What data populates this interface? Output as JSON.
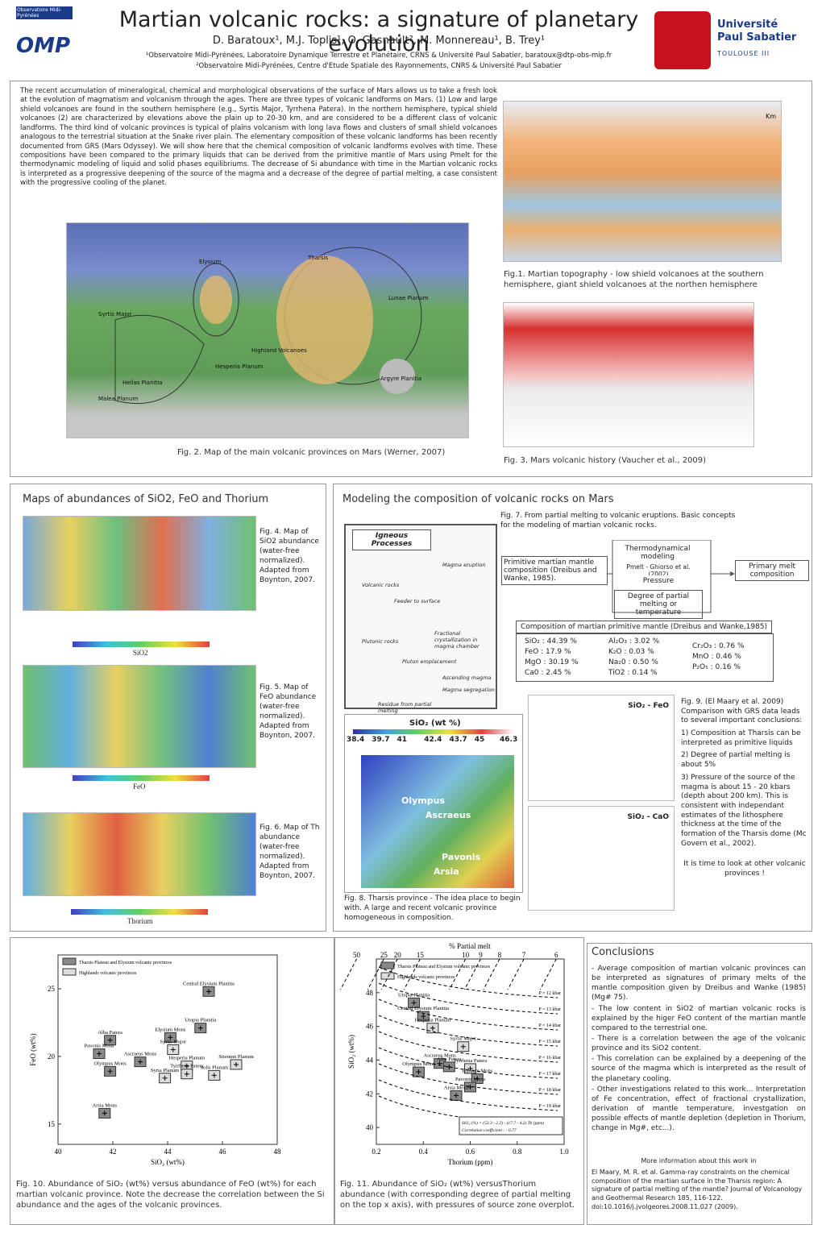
{
  "header": {
    "title": "Martian volcanic rocks: a signature of planetary evolution",
    "authors": "D. Baratoux¹, M.J. Toplis¹, O. Gasnault², M. Monnereau¹, B. Trey¹",
    "affiliation_1": "¹Observatoire Midi-Pyrénées, Laboratoire Dynamique Terrestre et Planétaire, CRNS & Université Paul Sabatier, baratoux@dtp-obs-mip.fr",
    "affiliation_2": "²Observatoire Midi-Pyrénées, Centre d'Etude Spatiale des Rayonnements, CNRS & Université Paul Sabatier",
    "logo_left_top": "Observatoire Midi-Pyrénées",
    "logo_left": "OMP",
    "logo_right_1": "Université",
    "logo_right_2": "Paul Sabatier",
    "logo_right_3": "TOULOUSE III"
  },
  "intro": "The recent accumulation of mineralogical, chemical and morphological observations of the surface of Mars allows us to take a fresh look at the evolution of magmatism and volcanism through the ages. There are three types of volcanic landforms on Mars. (1) Low and large shield volcanoes are found in the southern hemisphere (e.g., Syrtis Major, Tyrrhena Patera). In the northern hemisphere, typical shield volcanoes (2) are characterized by elevations above the plain up to 20-30 km, and are considered to be a different class of volcanic landforms. The third kind of volcanic provinces is typical of plains volcanism with long lava flows and clusters of small shield volcanoes analogous to the terrestrial situation at the Snake river plain. The elementary composition of these volcanic landforms has been recently documented from GRS (Mars Odyssey). We will show here that the chemical composition of volcanic landforms evolves with time. These compositions have been compared to the primary liquids that can be derived from the primitive mantle of Mars using Pmelt for the thermodynamic modeling of liquid and solid phases equilibriums. The decrease of Si abundance with time in the Martian volcanic rocks is interpreted as a progressive deepening of the source of the magma and a decrease of the degree of partial melting, a case consistent with the progressive cooling of the planet.",
  "fig1": {
    "caption": "Fig.1. Martian topography - low shield volcanoes at the southern hemisphere, giant shield volcanoes at the northen hemisphere",
    "unit": "Km"
  },
  "fig2": {
    "caption": "Fig. 2. Map of the main volcanic provinces on Mars (Werner, 2007)",
    "labels": [
      "Elysium",
      "Tharsis",
      "Syrtis Major",
      "Hesperia Planum",
      "Highland Volcanoes",
      "Malea Planum",
      "Argyre Planitia",
      "Hellas Planitia",
      "Lunae Planum"
    ]
  },
  "fig3": {
    "caption": "Fig. 3. Mars volcanic history (Vaucher et al., 2009)"
  },
  "maps": {
    "heading": "Maps of abundances of SiO2, FeO and Thorium",
    "fig4": "Fig. 4. Map of SiO2 abundance (water-free normalized). Adapted from Boynton, 2007.",
    "fig4_bar": "SiO2",
    "fig5": "Fig. 5. Map of FeO abundance (water-free normalized). Adapted from Boynton, 2007.",
    "fig5_bar": "FeO",
    "fig6": "Fig. 6. Map of Th abundance (water-free normalized). Adapted from Boynton, 2007.",
    "fig6_bar": "Thorium"
  },
  "modeling": {
    "heading": "Modeling the composition of volcanic rocks on Mars",
    "fig7_caption": "Fig. 7. From partial melting to volcanic eruptions. Basic concepts for the modeling of martian volcanic rocks.",
    "igneous": {
      "title": "Igneous Processes",
      "labels": [
        "Magma eruption",
        "Volcanic rocks",
        "Feeder to surface",
        "Fractional crystallization in magma chamber",
        "Plutonic rocks",
        "Pluton emplacement",
        "Ascending magma",
        "Magma segregation",
        "Residue from partial melting"
      ]
    },
    "flow": {
      "thermo": "Thermodynamical modeling",
      "pmelt": "Pmelt - Ghiorso et al. (2002)",
      "mantle": "Primitive martian mantle composition (Dreibus and Wanke, 1985).",
      "pressure": "Pressure",
      "degree": "Degree of partial melting or temperature",
      "primary": "Primary melt composition"
    },
    "composition_title": "Composition of martian primitive mantle (Dreibus and Wanke,1985)",
    "composition": [
      [
        "SiO₂ : 44.39 %",
        "FeO : 17.9 %",
        "MgO : 30.19 %",
        "Ca0 : 2.45 %"
      ],
      [
        "Al₂O₃ : 3.02 %",
        "K₂O : 0.03 %",
        "Na₂0 : 0.50 %",
        "TiO2 : 0.14 %"
      ],
      [
        "Cr₂O₃ : 0.76 %",
        "MnO : 0.46 %",
        "P₂O₅ : 0.16 %"
      ]
    ],
    "fig8": {
      "title": "SiO₂ (wt %)",
      "ticks": [
        38.4,
        39.7,
        41.0,
        42.4,
        43.7,
        45.0,
        46.3
      ],
      "volcanoes": [
        "Olympus",
        "Ascraeus",
        "Pavonis",
        "Arsia"
      ],
      "caption": "Fig. 8. Tharsis province - The idea place to begin with. A large and recent volcanic province homogeneous in composition."
    },
    "fig9": {
      "panels": [
        "SiO₂ - FeO",
        "SiO₂ - CaO"
      ],
      "text": [
        "Fig. 9. (El Maary et al. 2009) Comparison with GRS data leads to several important conclusions:",
        "1) Composition at Tharsis can be interpreted as primitive liquids",
        "2) Degree of partial melting is about 5%",
        "3) Pressure of the source of the magma is about 15 - 20 kbars (depth about 200 km). This is consistent with independant estimates of the lithosphere thickness at the time of the formation of the Tharsis dome (Mc Govern et al., 2002).",
        "It is time to look at other volcanic provinces !"
      ]
    }
  },
  "fig10": {
    "type": "scatter",
    "xlabel": "SiO₂ (wt%)",
    "ylabel": "FeO (wt%)",
    "xlim": [
      40,
      48
    ],
    "xticks": [
      40,
      42,
      44,
      46,
      48
    ],
    "ylim": [
      13.5,
      27.5
    ],
    "yticks": [
      15,
      20,
      25
    ],
    "legend": [
      {
        "name": "Tharsis Plateau and Elysium volcanic provinces",
        "color": "#8a8a8a"
      },
      {
        "name": "Highlands volcanic provinces",
        "color": "#dcdcdc"
      }
    ],
    "points": [
      {
        "name": "Central Elysium Planitia",
        "x": 45.5,
        "y": 24.8,
        "group": 0
      },
      {
        "name": "Elysium Mons",
        "x": 44.1,
        "y": 21.4,
        "group": 0
      },
      {
        "name": "Utopia Planitia",
        "x": 45.2,
        "y": 22.1,
        "group": 0
      },
      {
        "name": "Alba Patera",
        "x": 41.9,
        "y": 21.2,
        "group": 0
      },
      {
        "name": "Syrtis Major",
        "x": 44.2,
        "y": 20.5,
        "group": 1
      },
      {
        "name": "Pavonis Mons",
        "x": 41.5,
        "y": 20.2,
        "group": 0
      },
      {
        "name": "Ascraeus Mons",
        "x": 43.0,
        "y": 19.6,
        "group": 0
      },
      {
        "name": "Hesperia Planum",
        "x": 44.7,
        "y": 19.3,
        "group": 1
      },
      {
        "name": "Tyrrhena Patera",
        "x": 44.7,
        "y": 18.7,
        "group": 1
      },
      {
        "name": "Sirenum Planum",
        "x": 46.5,
        "y": 19.4,
        "group": 1
      },
      {
        "name": "Olympus Mons",
        "x": 41.9,
        "y": 18.9,
        "group": 0
      },
      {
        "name": "Syria Planum",
        "x": 43.9,
        "y": 18.4,
        "group": 1
      },
      {
        "name": "Solis Planum",
        "x": 45.7,
        "y": 18.6,
        "group": 1
      },
      {
        "name": "Arsia Mons",
        "x": 41.7,
        "y": 15.8,
        "group": 0
      }
    ],
    "caption": "Fig. 10. Abundance of SiO₂ (wt%) versus abundance of FeO (wt%) for each martian volcanic province. Note the decrease the correlation between the Si abundance and the ages of the volcanic provinces."
  },
  "fig11": {
    "type": "scatter",
    "xlabel": "Thorium (ppm)",
    "ylabel": "SiO₂ (wt%)",
    "toplabel": "% Partial melt",
    "melt_ticks": [
      50,
      25,
      20,
      15,
      10,
      9,
      8,
      7,
      6
    ],
    "xlim": [
      0.2,
      1.0
    ],
    "xticks": [
      0.2,
      0.4,
      0.6,
      0.8,
      {
        "value": 1.0,
        "label": "1.0"
      }
    ],
    "ylim": [
      39,
      50
    ],
    "yticks": [
      40,
      42,
      44,
      46,
      48
    ],
    "pressures": [
      "P = 12 kbar",
      "P = 13 kbar",
      "P = 14 kbar",
      "P = 15 kbar",
      "P = 16 kbar",
      "P = 17 kbar",
      "P = 18 kbar",
      "P = 19 kbar",
      "P = 20 kbar"
    ],
    "legend": [
      {
        "name": "Tharsis Plateau and Elysium volcanic provinces",
        "color": "#8a8a8a"
      },
      {
        "name": "Highlands volcanic provinces",
        "color": "#dcdcdc"
      }
    ],
    "points": [
      {
        "name": "Utopia Planitia",
        "x": 0.36,
        "y": 47.4,
        "group": 0
      },
      {
        "name": "Central Elysium Planitia",
        "x": 0.4,
        "y": 46.6,
        "group": 0
      },
      {
        "name": "Hesperia Planum",
        "x": 0.44,
        "y": 45.9,
        "group": 1
      },
      {
        "name": "Syrtis Major",
        "x": 0.57,
        "y": 44.8,
        "group": 1
      },
      {
        "name": "Ascraeus Mons",
        "x": 0.47,
        "y": 43.8,
        "group": 0
      },
      {
        "name": "Alba Patera",
        "x": 0.51,
        "y": 43.6,
        "group": 0
      },
      {
        "name": "Tyrrhena Patera",
        "x": 0.6,
        "y": 43.5,
        "group": 1
      },
      {
        "name": "Olympus Mons",
        "x": 0.38,
        "y": 43.3,
        "group": 0
      },
      {
        "name": "Elysium Mons",
        "x": 0.63,
        "y": 42.9,
        "group": 0
      },
      {
        "name": "Pavonis Mons",
        "x": 0.6,
        "y": 42.4,
        "group": 0
      },
      {
        "name": "Arsia Mons",
        "x": 0.54,
        "y": 41.9,
        "group": 0
      }
    ],
    "formula": "SiO₂ (%) = (53.3 - 2.2) - (17.7 - 4.2) Th (ppm)",
    "correlation": "Correlation coefficient : - 0.77",
    "caption": "Fig. 11. Abundance of SiO₂ (wt%) versusThorium abundance (with corresponding degree of partial melting on the top x axis), with pressures of source zone overplot."
  },
  "conclusions": {
    "heading": "Conclusions",
    "items": [
      "- Average composition of martian volcanic provinces can be interpreted as signatures of primary melts of the mantle composition given by Dreibus and Wanke (1985) (Mg# 75).",
      "- The low content in SiO2 of martian volcanic rocks is explained by the higer FeO content of the martian mantle compared to the terrestrial one.",
      "- There is a correlation between the age of the volcanic province and its SiO2 content.",
      "- This correlation can be explained by a deepening of the source of the magma which is interpreted as the result of the planetary cooling.",
      "- Other investigations related to this work... Interpretation of Fe concentration, effect of fractional crystallization, derivation of mantle temperature, investgation on possible effects of mantle depletion (depletion in Thorium, change in Mg#, etc...)."
    ],
    "more_title": "More information about this work in",
    "reference": "El Maary, M. R. et al. Gamma-ray constraints on the chemical composition of the martian surface in the Tharsis region: A signature of partial melting of the mantle? Journal of Volcanology and Geothermal Research 185, 116-122. doi:10.1016/j.jvolgeores.2008.11.027 (2009)."
  }
}
